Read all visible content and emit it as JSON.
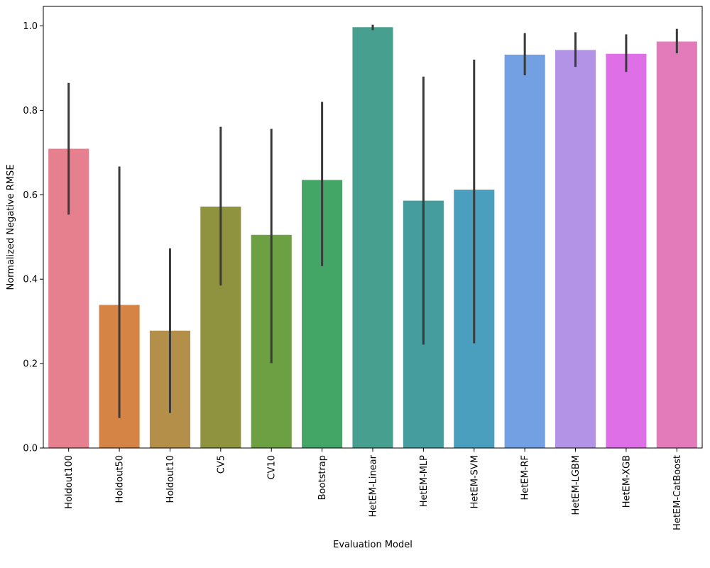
{
  "chart_data": {
    "type": "bar",
    "title": "",
    "xlabel": "Evaluation Model",
    "ylabel": "Normalized Negative RMSE",
    "ylim": [
      0.0,
      1.05
    ],
    "yticks": [
      0.0,
      0.2,
      0.4,
      0.6,
      0.8,
      1.0
    ],
    "ytick_labels": [
      "0.0",
      "0.2",
      "0.4",
      "0.6",
      "0.8",
      "1.0"
    ],
    "grid": false,
    "legend": "none",
    "categories": [
      "Holdout100",
      "Holdout50",
      "Holdout10",
      "CV5",
      "CV10",
      "Bootstrap",
      "HetEM-Linear",
      "HetEM-MLP",
      "HetEM-SVM",
      "HetEM-RF",
      "HetEM-LGBM",
      "HetEM-XGB",
      "HetEM-CatBoost"
    ],
    "values": [
      0.709,
      0.339,
      0.278,
      0.572,
      0.505,
      0.635,
      0.997,
      0.586,
      0.612,
      0.932,
      0.943,
      0.934,
      0.963
    ],
    "error_low": [
      0.553,
      0.071,
      0.083,
      0.385,
      0.201,
      0.431,
      0.99,
      0.245,
      0.248,
      0.883,
      0.903,
      0.891,
      0.935
    ],
    "error_high": [
      0.865,
      0.667,
      0.473,
      0.761,
      0.756,
      0.82,
      1.003,
      0.88,
      0.92,
      0.983,
      0.985,
      0.98,
      0.993
    ],
    "colors": [
      "#e6808f",
      "#d68446",
      "#b38f4a",
      "#8f9340",
      "#6da042",
      "#43a566",
      "#47a08f",
      "#469d9e",
      "#4a9fbf",
      "#72a0e2",
      "#b393e5",
      "#df6fe6",
      "#e37ab9"
    ],
    "error_color": "#3a3a3a"
  }
}
